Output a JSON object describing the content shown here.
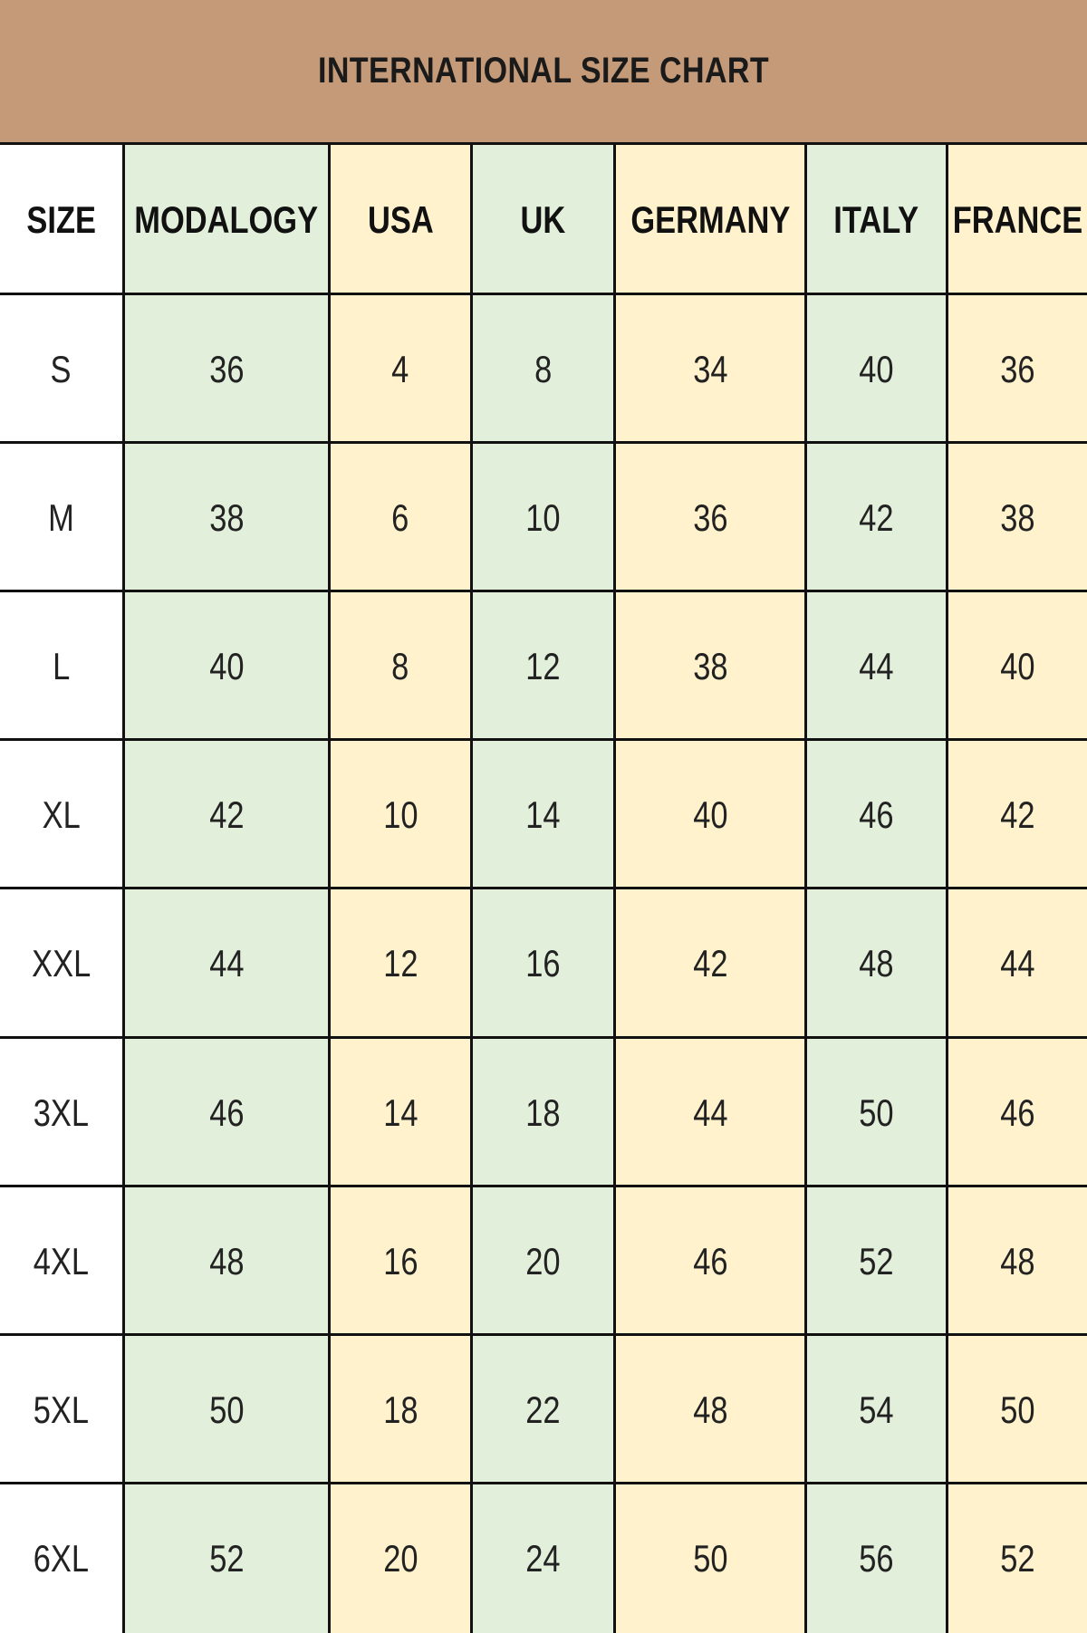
{
  "title": "INTERNATIONAL SIZE CHART",
  "colors": {
    "band": "#C49A78",
    "green": "#E2EFDA",
    "yellow": "#FFF2CC",
    "white": "#FFFFFF",
    "border": "#111111"
  },
  "chart_data": {
    "type": "table",
    "title": "INTERNATIONAL SIZE CHART",
    "columns": [
      "SIZE",
      "MODALOGY",
      "USA",
      "UK",
      "GERMANY",
      "ITALY",
      "FRANCE"
    ],
    "column_fills": [
      "white",
      "green",
      "yellow",
      "green",
      "yellow",
      "green",
      "yellow"
    ],
    "rows": [
      [
        "S",
        "36",
        "4",
        "8",
        "34",
        "40",
        "36"
      ],
      [
        "M",
        "38",
        "6",
        "10",
        "36",
        "42",
        "38"
      ],
      [
        "L",
        "40",
        "8",
        "12",
        "38",
        "44",
        "40"
      ],
      [
        "XL",
        "42",
        "10",
        "14",
        "40",
        "46",
        "42"
      ],
      [
        "XXL",
        "44",
        "12",
        "16",
        "42",
        "48",
        "44"
      ],
      [
        "3XL",
        "46",
        "14",
        "18",
        "44",
        "50",
        "46"
      ],
      [
        "4XL",
        "48",
        "16",
        "20",
        "46",
        "52",
        "48"
      ],
      [
        "5XL",
        "50",
        "18",
        "22",
        "48",
        "54",
        "50"
      ],
      [
        "6XL",
        "52",
        "20",
        "24",
        "50",
        "56",
        "52"
      ]
    ]
  }
}
